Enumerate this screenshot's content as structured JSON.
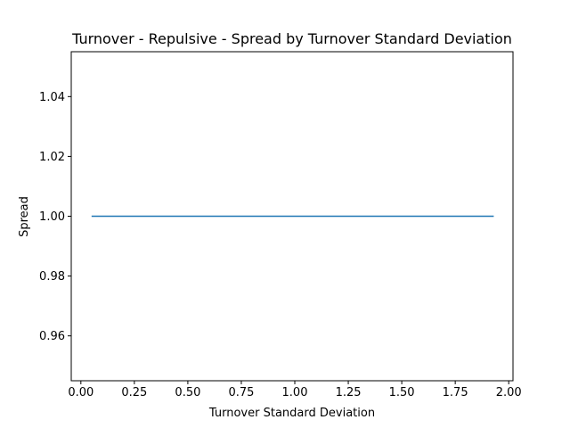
{
  "chart_data": {
    "type": "line",
    "title": "Turnover - Repulsive - Spread by Turnover Standard Deviation",
    "xlabel": "Turnover Standard Deviation",
    "ylabel": "Spread",
    "xlim": [
      -0.045,
      2.02
    ],
    "ylim": [
      0.945,
      1.055
    ],
    "xticks": [
      0.0,
      0.25,
      0.5,
      0.75,
      1.0,
      1.25,
      1.5,
      1.75,
      2.0
    ],
    "xtick_labels": [
      "0.00",
      "0.25",
      "0.50",
      "0.75",
      "1.00",
      "1.25",
      "1.50",
      "1.75",
      "2.00"
    ],
    "yticks": [
      0.96,
      0.98,
      1.0,
      1.02,
      1.04
    ],
    "ytick_labels": [
      "0.96",
      "0.98",
      "1.00",
      "1.02",
      "1.04"
    ],
    "grid": false,
    "series": [
      {
        "color": "#1f77b4",
        "x": [
          0.05,
          1.93
        ],
        "y": [
          1.0,
          1.0
        ]
      }
    ]
  }
}
